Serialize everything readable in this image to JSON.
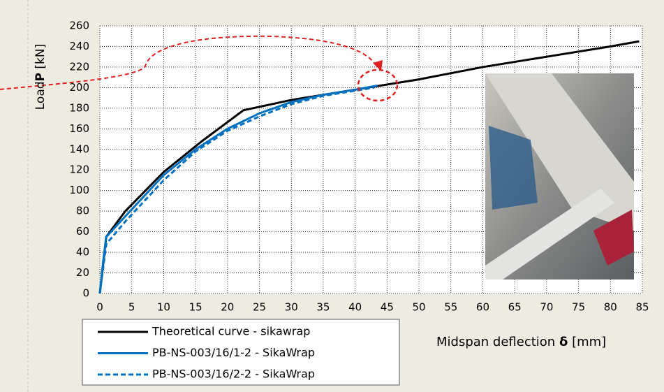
{
  "chart_data": {
    "type": "line",
    "xlabel": {
      "text": "Midspan deflection",
      "bold": "δ",
      "unit": "[mm]"
    },
    "ylabel": {
      "text": "Load",
      "bold": "P",
      "unit": "[kN]"
    },
    "xlim": [
      0,
      85
    ],
    "xticks": [
      0,
      5,
      10,
      15,
      20,
      25,
      30,
      35,
      40,
      45,
      50,
      55,
      60,
      65,
      70,
      75,
      80,
      85
    ],
    "ylim": [
      0,
      260
    ],
    "yticks": [
      0,
      20,
      40,
      60,
      80,
      100,
      120,
      140,
      160,
      180,
      200,
      220,
      240,
      260
    ],
    "grid": true,
    "series": [
      {
        "name": "Theoretical curve - sikawrap",
        "color": "#000000",
        "dash": false,
        "x": [
          0,
          1,
          4,
          10,
          16,
          22.5,
          30,
          40,
          50,
          60,
          70,
          80,
          84.5
        ],
        "values": [
          0,
          55,
          80,
          118,
          148,
          178,
          188,
          198,
          208,
          220,
          230,
          240,
          245
        ]
      },
      {
        "name": "PB-NS-003/16/1-2 - SikaWrap",
        "color": "#0070c0",
        "dash": false,
        "x": [
          0,
          0.5,
          1,
          4,
          10,
          15,
          20,
          25,
          30,
          35,
          40,
          43.5
        ],
        "values": [
          0,
          30,
          55,
          75,
          115,
          140,
          160,
          175,
          186,
          193,
          198,
          202
        ]
      },
      {
        "name": "PB-NS-003/16/2-2 - SikaWrap",
        "color": "#0070c0",
        "dash": true,
        "x": [
          0,
          1,
          4,
          10,
          15,
          20,
          25,
          30,
          35,
          40,
          43
        ],
        "values": [
          0,
          48,
          70,
          110,
          138,
          158,
          172,
          184,
          192,
          197,
          200
        ]
      }
    ]
  }
}
